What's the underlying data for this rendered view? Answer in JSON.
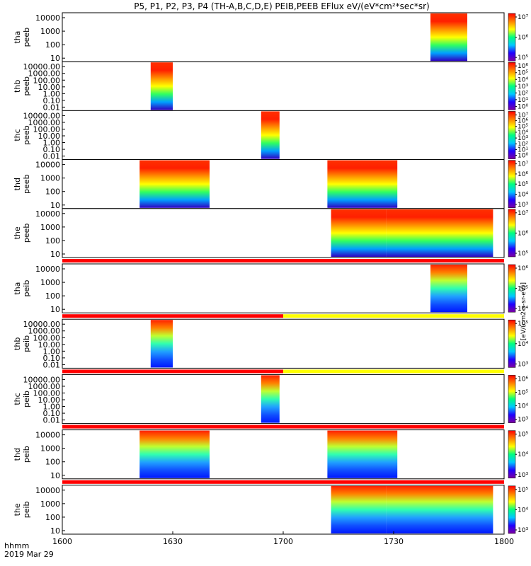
{
  "chart_data": {
    "type": "heatmap",
    "title": "P5, P1, P2, P3, P4 (TH-A,B,C,D,E) PEIB,PEEB EFlux eV/(eV*cm²*sec*sr)",
    "x_axis": {
      "ticks": [
        "1600",
        "1630",
        "1700",
        "1730",
        "1800"
      ],
      "range_minutes": [
        0,
        120
      ],
      "label_hhmm": "hhmm",
      "label_date": "2019 Mar 29"
    },
    "colorbar_unit": "[eV/(cm2-s-sr-eV)]",
    "panels": [
      {
        "name": "tha peeb",
        "y_ticks": [
          "10000",
          "1000",
          "100",
          "10"
        ],
        "blocks": [
          [
            100,
            110
          ]
        ],
        "palette": "warm",
        "cbar_ticks": [
          "10⁷",
          "10⁶",
          "10⁵"
        ]
      },
      {
        "name": "thb peeb",
        "y_ticks": [
          "10000.00",
          "1000.00",
          "100.00",
          "10.00",
          "1.00",
          "0.10",
          "0.01"
        ],
        "blocks": [
          [
            24,
            30
          ]
        ],
        "palette": "warm",
        "cbar_ticks": [
          "10⁶",
          "10⁵",
          "10⁴",
          "10³",
          "10²",
          "10¹",
          "10⁰"
        ]
      },
      {
        "name": "thc peeb",
        "y_ticks": [
          "10000.00",
          "1000.00",
          "100.00",
          "10.00",
          "1.00",
          "0.10",
          "0.01"
        ],
        "blocks": [
          [
            54,
            59
          ]
        ],
        "palette": "warm",
        "cbar_ticks": [
          "10⁷",
          "10⁶",
          "10⁵",
          "10⁴",
          "10³",
          "10²",
          "10¹",
          "10⁰"
        ]
      },
      {
        "name": "thd peeb",
        "y_ticks": [
          "10000",
          "1000",
          "100",
          "10"
        ],
        "blocks": [
          [
            21,
            40
          ],
          [
            72,
            91
          ]
        ],
        "palette": "warm",
        "cbar_ticks": [
          "10⁷",
          "10⁶",
          "10⁵",
          "10⁴",
          "10³"
        ]
      },
      {
        "name": "the peeb",
        "y_ticks": [
          "10000",
          "1000",
          "100",
          "10"
        ],
        "blocks": [
          [
            73,
            88
          ],
          [
            88,
            117
          ]
        ],
        "palette": "warm",
        "cbar_ticks": [
          "10⁷",
          "10⁶",
          "10⁵"
        ]
      },
      {
        "name": "tha peib",
        "y_ticks": [
          "10000",
          "1000",
          "100",
          "10"
        ],
        "blocks": [
          [
            100,
            110
          ]
        ],
        "palette": "cool",
        "cbar_ticks": [
          "10⁶",
          "10⁵",
          "10⁴"
        ]
      },
      {
        "name": "thb peib",
        "y_ticks": [
          "10000.00",
          "1000.00",
          "100.00",
          "10.00",
          "1.00",
          "0.10",
          "0.01"
        ],
        "blocks": [
          [
            24,
            30
          ]
        ],
        "palette": "cool",
        "cbar_ticks": [
          "10⁵",
          "10⁴",
          "10³"
        ]
      },
      {
        "name": "thc peib",
        "y_ticks": [
          "10000.00",
          "1000.00",
          "100.00",
          "10.00",
          "1.00",
          "0.10",
          "0.01"
        ],
        "blocks": [
          [
            54,
            59
          ]
        ],
        "palette": "cool",
        "cbar_ticks": [
          "10⁶",
          "10⁵",
          "10⁴",
          "10³"
        ]
      },
      {
        "name": "thd peib",
        "y_ticks": [
          "10000",
          "1000",
          "100",
          "10"
        ],
        "blocks": [
          [
            21,
            40
          ],
          [
            72,
            91
          ]
        ],
        "palette": "cool",
        "cbar_ticks": [
          "10⁵",
          "10⁴",
          "10³"
        ]
      },
      {
        "name": "the peib",
        "y_ticks": [
          "10000",
          "1000",
          "100",
          "10"
        ],
        "blocks": [
          [
            73,
            88
          ],
          [
            88,
            117
          ]
        ],
        "palette": "cool",
        "cbar_ticks": [
          "10⁵",
          "10⁴",
          "10³"
        ]
      }
    ],
    "status_bars": [
      {
        "segments": [
          {
            "range_minutes": [
              0,
              120
            ],
            "color": "#ff0000"
          }
        ]
      },
      {
        "segments": [
          {
            "range_minutes": [
              0,
              60
            ],
            "color": "#ff0000"
          },
          {
            "range_minutes": [
              60,
              120
            ],
            "color": "#ffff00"
          }
        ]
      },
      {
        "segments": [
          {
            "range_minutes": [
              0,
              60
            ],
            "color": "#ff0000"
          },
          {
            "range_minutes": [
              60,
              120
            ],
            "color": "#ffff00"
          }
        ]
      },
      {
        "segments": [
          {
            "range_minutes": [
              0,
              120
            ],
            "color": "#ff0000"
          }
        ]
      },
      {
        "segments": [
          {
            "range_minutes": [
              0,
              120
            ],
            "color": "#ff0000"
          }
        ]
      }
    ],
    "grid": false,
    "legend": "colorbars-right"
  }
}
